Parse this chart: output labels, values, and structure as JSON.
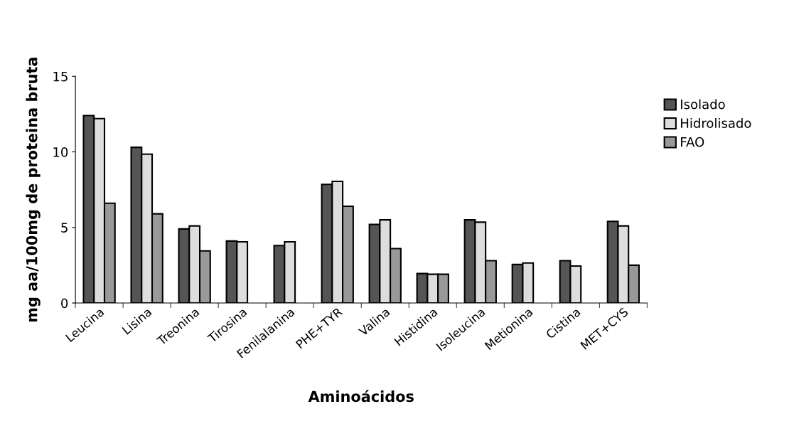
{
  "chart_data": {
    "type": "bar",
    "xlabel": "Aminoácidos",
    "ylabel": "mg aa/100mg de proteina bruta",
    "categories": [
      "Leucina",
      "Lisina",
      "Treonina",
      "Tirosina",
      "Fenilalanina",
      "PHE+TYR",
      "Valina",
      "Histidina",
      "Isoleucina",
      "Metionina",
      "Cistina",
      "MET+CYS"
    ],
    "series": [
      {
        "name": "Isolado",
        "color": "#555555",
        "values": [
          12.4,
          10.3,
          4.9,
          4.1,
          3.8,
          7.85,
          5.2,
          1.95,
          5.5,
          2.55,
          2.8,
          5.4
        ]
      },
      {
        "name": "Hidrolisado",
        "color": "#dddddd",
        "values": [
          12.2,
          9.85,
          5.1,
          4.05,
          4.05,
          8.05,
          5.5,
          1.9,
          5.35,
          2.65,
          2.45,
          5.1
        ]
      },
      {
        "name": "FAO",
        "color": "#999999",
        "values": [
          6.6,
          5.9,
          3.45,
          null,
          null,
          6.4,
          3.6,
          1.9,
          2.8,
          null,
          null,
          2.5
        ]
      }
    ],
    "ylim": [
      0,
      15
    ],
    "yticks": [
      0,
      5,
      10,
      15
    ],
    "grid": false,
    "legend": "right"
  }
}
